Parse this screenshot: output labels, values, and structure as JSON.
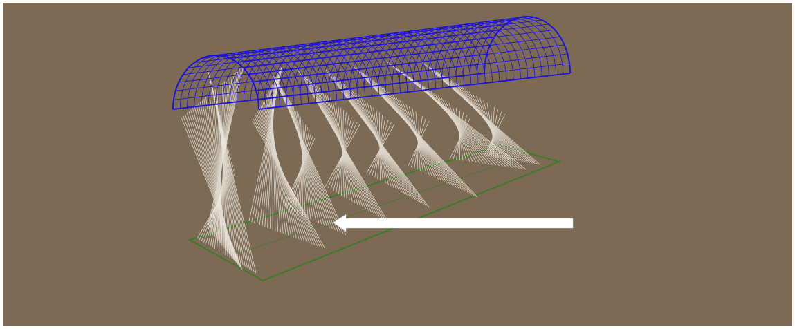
{
  "scene": {
    "background_color": "#7d6a55",
    "frame_color": "#ffffff",
    "vault_mesh_color": "#1a10e0",
    "ray_color": "#efeae0",
    "footprint_color": "#3d7a2a",
    "arrow_color": "#ffffff",
    "arrow_direction": "left"
  }
}
